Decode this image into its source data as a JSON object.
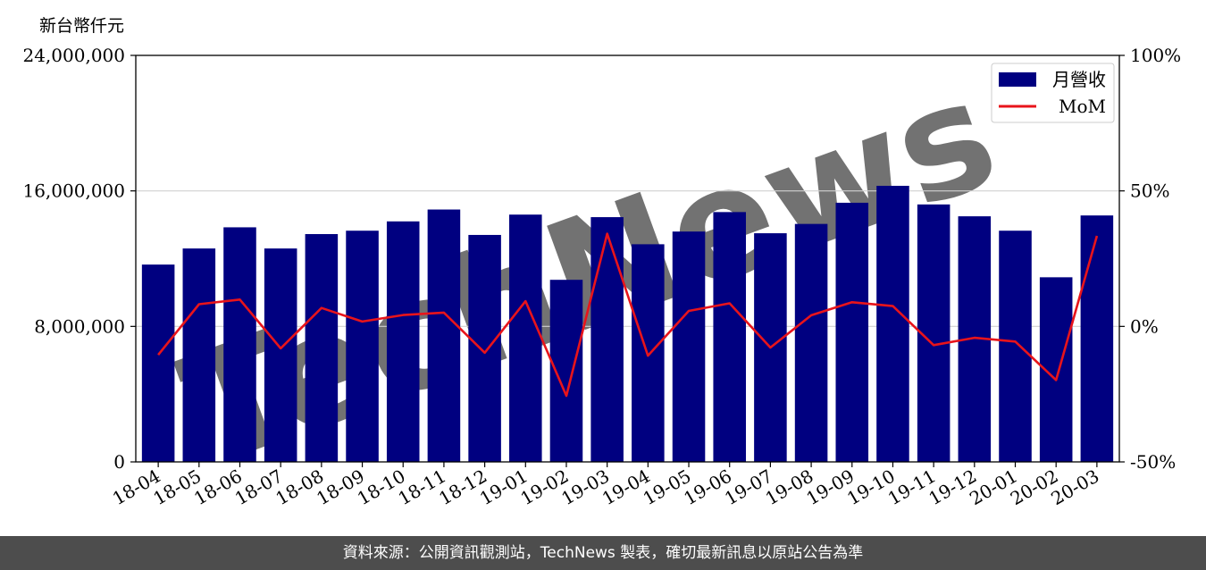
{
  "unit_label": "新台幣仟元",
  "footer": "資料來源：公開資訊觀測站，TechNews 製表，確切最新訊息以原站公告為準",
  "watermark": "TechNews",
  "colors": {
    "bar": "#000080",
    "line": "#e8141b",
    "grid": "#d0d0d0",
    "footer_bg": "#4d4d4d"
  },
  "chart_data": {
    "type": "bar",
    "categories": [
      "18-04",
      "18-05",
      "18-06",
      "18-07",
      "18-08",
      "18-09",
      "18-10",
      "18-11",
      "18-12",
      "19-01",
      "19-02",
      "19-03",
      "19-04",
      "19-05",
      "19-06",
      "19-07",
      "19-08",
      "19-09",
      "19-10",
      "19-11",
      "19-12",
      "20-01",
      "20-02",
      "20-03"
    ],
    "series": [
      {
        "name": "月營收",
        "type": "bar",
        "axis": "left",
        "values": [
          11650000,
          12600000,
          13850000,
          12600000,
          13450000,
          13650000,
          14200000,
          14900000,
          13400000,
          14600000,
          10750000,
          14450000,
          12850000,
          13600000,
          14750000,
          13500000,
          14050000,
          15300000,
          16300000,
          15200000,
          14500000,
          13650000,
          10900000,
          14550000
        ]
      },
      {
        "name": "MoM",
        "type": "line",
        "axis": "right",
        "values": [
          -10.5,
          8.2,
          9.9,
          -8.1,
          6.8,
          1.8,
          4.2,
          5.1,
          -9.7,
          9.3,
          -25.6,
          34.2,
          -10.8,
          5.7,
          8.5,
          -7.8,
          4.1,
          8.9,
          7.5,
          -6.9,
          -4.2,
          -5.6,
          -19.8,
          33.4
        ]
      }
    ],
    "yaxis_left": {
      "ylim": [
        0,
        24000000
      ],
      "ticks": [
        "0",
        "8,000,000",
        "16,000,000",
        "24,000,000"
      ],
      "tick_values": [
        0,
        8000000,
        16000000,
        24000000
      ]
    },
    "yaxis_right": {
      "ylim": [
        -50,
        100
      ],
      "ticks": [
        "-50%",
        "0%",
        "50%",
        "100%"
      ],
      "tick_values": [
        -50,
        0,
        50,
        100
      ]
    },
    "grid": true,
    "legend": {
      "placement": "top-right",
      "entries": [
        "月營收",
        "MoM"
      ]
    }
  }
}
